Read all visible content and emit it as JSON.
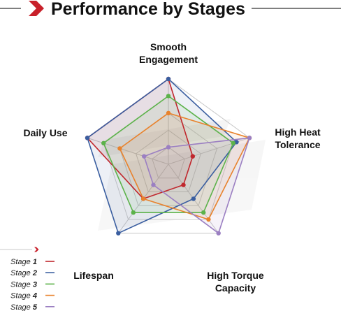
{
  "colors": {
    "accent": "#c8202a",
    "grid": "#c8c8c8",
    "header_rule": "#555555",
    "watermark": "#e6e6e6"
  },
  "chart_data": {
    "type": "radar",
    "title": "Performance by Stages",
    "axes": [
      "Smooth Engagement",
      "High Heat Tolerance",
      "High Torque Capacity",
      "Lifespan",
      "Daily Use"
    ],
    "max": 5,
    "grid_levels": 5,
    "legend_position": "bottom-left",
    "series": [
      {
        "name": "Stage 1",
        "legend_prefix": "Stage",
        "legend_number": "1",
        "color": "#c0272d",
        "values": [
          5.0,
          1.5,
          1.5,
          2.5,
          5.0
        ]
      },
      {
        "name": "Stage 2",
        "legend_prefix": "Stage",
        "legend_number": "2",
        "color": "#3a5ea0",
        "values": [
          5.0,
          4.2,
          2.5,
          5.0,
          5.0
        ]
      },
      {
        "name": "Stage 3",
        "legend_prefix": "Stage",
        "legend_number": "3",
        "color": "#5cb24a",
        "values": [
          4.0,
          4.0,
          3.5,
          3.5,
          4.0
        ]
      },
      {
        "name": "Stage 4",
        "legend_prefix": "Stage",
        "legend_number": "4",
        "color": "#e8822c",
        "values": [
          3.0,
          5.0,
          4.0,
          2.5,
          3.0
        ]
      },
      {
        "name": "Stage 5",
        "legend_prefix": "Stage",
        "legend_number": "5",
        "color": "#9b7fc2",
        "values": [
          1.0,
          5.0,
          5.0,
          1.5,
          1.5
        ]
      }
    ]
  }
}
